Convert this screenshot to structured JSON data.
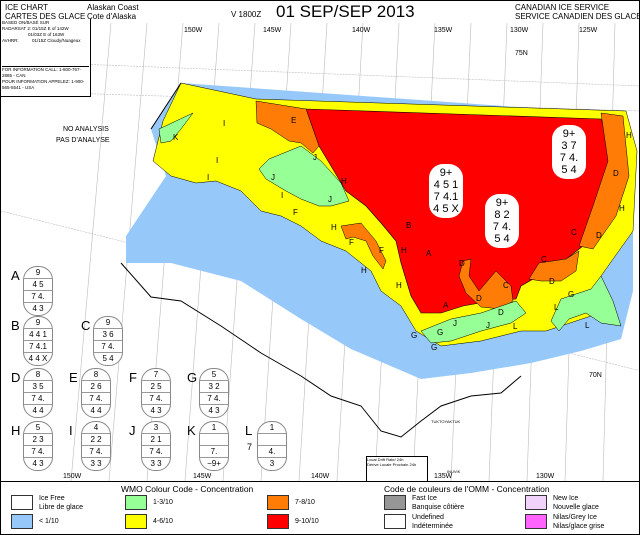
{
  "header": {
    "chart_type_en": "ICE CHART",
    "chart_type_fr": "CARTES DES GLACE",
    "region_en": "Alaskan Coast",
    "region_fr": "Cote d'Alaska",
    "valid": "V 1800Z",
    "date": "01 SEP/SEP 2013",
    "agency_en": "CANADIAN ICE SERVICE",
    "agency_fr": "SERVICE CANADIEN DES GLACES"
  },
  "info": {
    "based_on": "BASED ON/BASÉ SUR",
    "radarsat_label": "RADARSAT 2:",
    "radarsat_1": "01/15Z E of 142W",
    "radarsat_2": "01/03Z E of 163W",
    "avhrr_label": "AVHRR:",
    "avhrr_1": "01/15Z Cloudy/Nuageux",
    "call_en": "FOR INFORMATION CALL:",
    "call_en_num": "1-800-767-2885 - CAN",
    "call_fr": "POUR INFORMATION APPELEZ:",
    "call_fr_num": "1-900-565-5541 - USA"
  },
  "map": {
    "top_longitudes": [
      "150W",
      "145W",
      "140W",
      "135W",
      "130W",
      "125W"
    ],
    "bottom_longitudes": [
      "150W",
      "145W",
      "140W",
      "135W",
      "130W"
    ],
    "lat_75": "75N",
    "lat_70": "70N",
    "no_analysis": "NO ANALYSIS",
    "pas_analyse": "PAS D'ANALYSE",
    "place_tuk": "TUKTOYAKTUK",
    "place_inuvik": "INUVIK",
    "drift_box_1": "Local Drift Rate/ 24h",
    "drift_box_2": "Dérive Locale Prochain 24h",
    "region_labels": [
      "K",
      "I",
      "I",
      "I",
      "E",
      "J",
      "J",
      "I",
      "J",
      "H",
      "F",
      "H",
      "F",
      "F",
      "H",
      "B",
      "A",
      "H",
      "H",
      "A",
      "D",
      "D",
      "D",
      "C",
      "C",
      "C",
      "D",
      "D",
      "H",
      "H",
      "D",
      "G",
      "L",
      "G",
      "G",
      "J",
      "J",
      "L",
      "L",
      "G"
    ],
    "map_eggs": [
      [
        "9+",
        "4 5 1",
        "7 4.1",
        "4 5 X"
      ],
      [
        "9+",
        "8 2",
        "7 4.",
        "5 4"
      ],
      [
        "9+",
        "3 7",
        "7 4.",
        "5 4"
      ]
    ],
    "colors": {
      "ice_free": "#ffffff",
      "lt1": "#96c8fa",
      "c1_3": "#96ff96",
      "c4_6": "#ffff00",
      "c7_8": "#ff7d07",
      "c9_10": "#ff0000",
      "fast": "#969696",
      "new_ice": "#f0d2fa",
      "nilas": "#ff64ff"
    }
  },
  "egg_codes": [
    {
      "letter": "A",
      "rows": [
        "9",
        "4 5",
        "7 4.",
        "4 3"
      ]
    },
    {
      "letter": "B",
      "rows": [
        "9",
        "4 4 1",
        "7 4.1",
        "4 4 X"
      ]
    },
    {
      "letter": "C",
      "rows": [
        "9",
        "3 6",
        "7 4.",
        "5 4"
      ]
    },
    {
      "letter": "D",
      "rows": [
        "8",
        "3 5",
        "7 4.",
        "4 4"
      ]
    },
    {
      "letter": "E",
      "rows": [
        "8",
        "2 6",
        "7 4.",
        "4 4"
      ]
    },
    {
      "letter": "F",
      "rows": [
        "7",
        "2 5",
        "7 4.",
        "4 3"
      ]
    },
    {
      "letter": "G",
      "rows": [
        "5",
        "3 2",
        "7 4.",
        "4 3"
      ]
    },
    {
      "letter": "H",
      "rows": [
        "5",
        "2 3",
        "7 4.",
        "4 3"
      ]
    },
    {
      "letter": "I",
      "rows": [
        "4",
        "2 2",
        "7 4.",
        "3 3"
      ]
    },
    {
      "letter": "J",
      "rows": [
        "3",
        "2 1",
        "7 4.",
        "3 3"
      ]
    },
    {
      "letter": "K",
      "rows": [
        "1",
        "",
        "7.",
        "−9+"
      ]
    },
    {
      "letter": "L",
      "rows": [
        "1",
        "",
        "4.",
        "3"
      ],
      "side": "7"
    }
  ],
  "legend": {
    "title_en": "WMO Colour Code - Concentration",
    "title_fr": "Code de couleurs de l'OMM - Concentration",
    "items": [
      {
        "label": "Ice Free",
        "label2": "Libre de glace",
        "color": "#ffffff"
      },
      {
        "label": "< 1/10",
        "label2": "",
        "color": "#96c8fa"
      },
      {
        "label": "1-3/10",
        "label2": "",
        "color": "#96ff96"
      },
      {
        "label": "4-6/10",
        "label2": "",
        "color": "#ffff00"
      },
      {
        "label": "7-8/10",
        "label2": "",
        "color": "#ff7d07"
      },
      {
        "label": "9-10/10",
        "label2": "",
        "color": "#ff0000"
      },
      {
        "label": "Fast Ice",
        "label2": "Banquise côtière",
        "color": "#969696"
      },
      {
        "label": "Undefined",
        "label2": "Indéterminée",
        "color": "#ffffff"
      },
      {
        "label": "New Ice",
        "label2": "Nouvelle glace",
        "color": "#f0d2fa"
      },
      {
        "label": "Nilas/Grey Ice",
        "label2": "Nilas/glace grise",
        "color": "#ff64ff"
      }
    ]
  }
}
